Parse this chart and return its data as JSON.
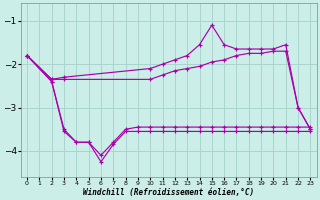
{
  "xlabel": "Windchill (Refroidissement éolien,°C)",
  "background_color": "#cceee8",
  "grid_color": "#aad4ce",
  "line_color": "#aa00aa",
  "xlim": [
    -0.5,
    23.5
  ],
  "ylim": [
    -4.6,
    -0.6
  ],
  "yticks": [
    -4,
    -3,
    -2,
    -1
  ],
  "xticks": [
    0,
    1,
    2,
    3,
    4,
    5,
    6,
    7,
    8,
    9,
    10,
    11,
    12,
    13,
    14,
    15,
    16,
    17,
    18,
    19,
    20,
    21,
    22,
    23
  ],
  "series": [
    {
      "x": [
        0,
        2,
        3,
        10,
        11,
        12,
        13,
        14,
        15,
        16,
        17,
        18,
        19,
        20,
        21,
        22,
        23
      ],
      "y": [
        -1.8,
        -2.35,
        -2.3,
        -2.1,
        -2.0,
        -1.9,
        -1.8,
        -1.55,
        -1.1,
        -1.55,
        -1.65,
        -1.65,
        -1.65,
        -1.65,
        -1.55,
        -3.0,
        -3.5
      ]
    },
    {
      "x": [
        0,
        2,
        3,
        10,
        11,
        12,
        13,
        14,
        15,
        16,
        17,
        18,
        19,
        20,
        21,
        22,
        23
      ],
      "y": [
        -1.8,
        -2.35,
        -2.35,
        -2.35,
        -2.25,
        -2.15,
        -2.1,
        -2.05,
        -1.95,
        -1.9,
        -1.8,
        -1.75,
        -1.75,
        -1.7,
        -1.7,
        -3.0,
        -3.5
      ]
    },
    {
      "x": [
        0,
        2,
        3,
        4,
        5,
        6,
        7,
        8,
        9,
        10,
        11,
        12,
        13,
        14,
        15,
        16,
        17,
        18,
        19,
        20,
        21,
        22,
        23
      ],
      "y": [
        -1.8,
        -2.4,
        -3.55,
        -3.8,
        -3.8,
        -4.25,
        -3.85,
        -3.55,
        -3.55,
        -3.55,
        -3.55,
        -3.55,
        -3.55,
        -3.55,
        -3.55,
        -3.55,
        -3.55,
        -3.55,
        -3.55,
        -3.55,
        -3.55,
        -3.55,
        -3.55
      ]
    },
    {
      "x": [
        0,
        2,
        3,
        4,
        5,
        6,
        7,
        8,
        9,
        10,
        11,
        12,
        13,
        14,
        15,
        16,
        17,
        18,
        19,
        20,
        21,
        22,
        23
      ],
      "y": [
        -1.8,
        -2.4,
        -3.5,
        -3.8,
        -3.8,
        -4.1,
        -3.8,
        -3.5,
        -3.45,
        -3.45,
        -3.45,
        -3.45,
        -3.45,
        -3.45,
        -3.45,
        -3.45,
        -3.45,
        -3.45,
        -3.45,
        -3.45,
        -3.45,
        -3.45,
        -3.45
      ]
    }
  ]
}
